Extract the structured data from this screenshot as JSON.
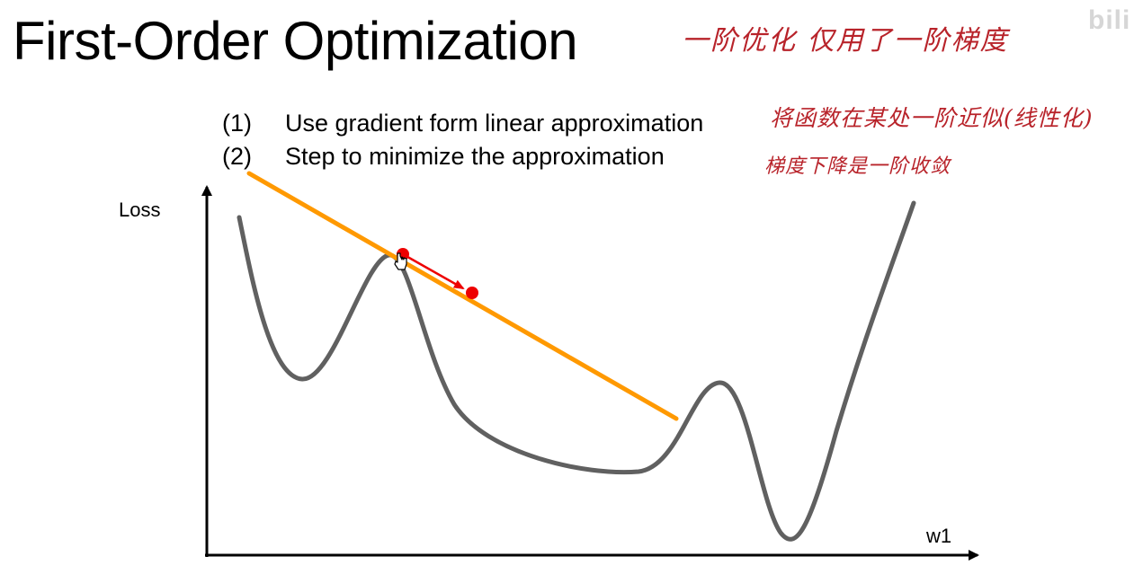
{
  "slide": {
    "title": "First-Order Optimization",
    "steps": [
      {
        "num": "(1)",
        "text": "Use gradient form linear approximation"
      },
      {
        "num": "(2)",
        "text": "Step to minimize the approximation"
      }
    ]
  },
  "annotations": {
    "title_note": "一阶优化   仅用了一阶梯度",
    "step1_note": "将函数在某处一阶近似(线性化)",
    "step2_note": "梯度下降是一阶收敛",
    "color": "#b8232a"
  },
  "diagram": {
    "y_axis_label": "Loss",
    "x_axis_label": "w1",
    "curve_color": "#606060",
    "tangent_color": "#ff9900",
    "point_color": "#ee0000"
  },
  "watermark": "bili"
}
